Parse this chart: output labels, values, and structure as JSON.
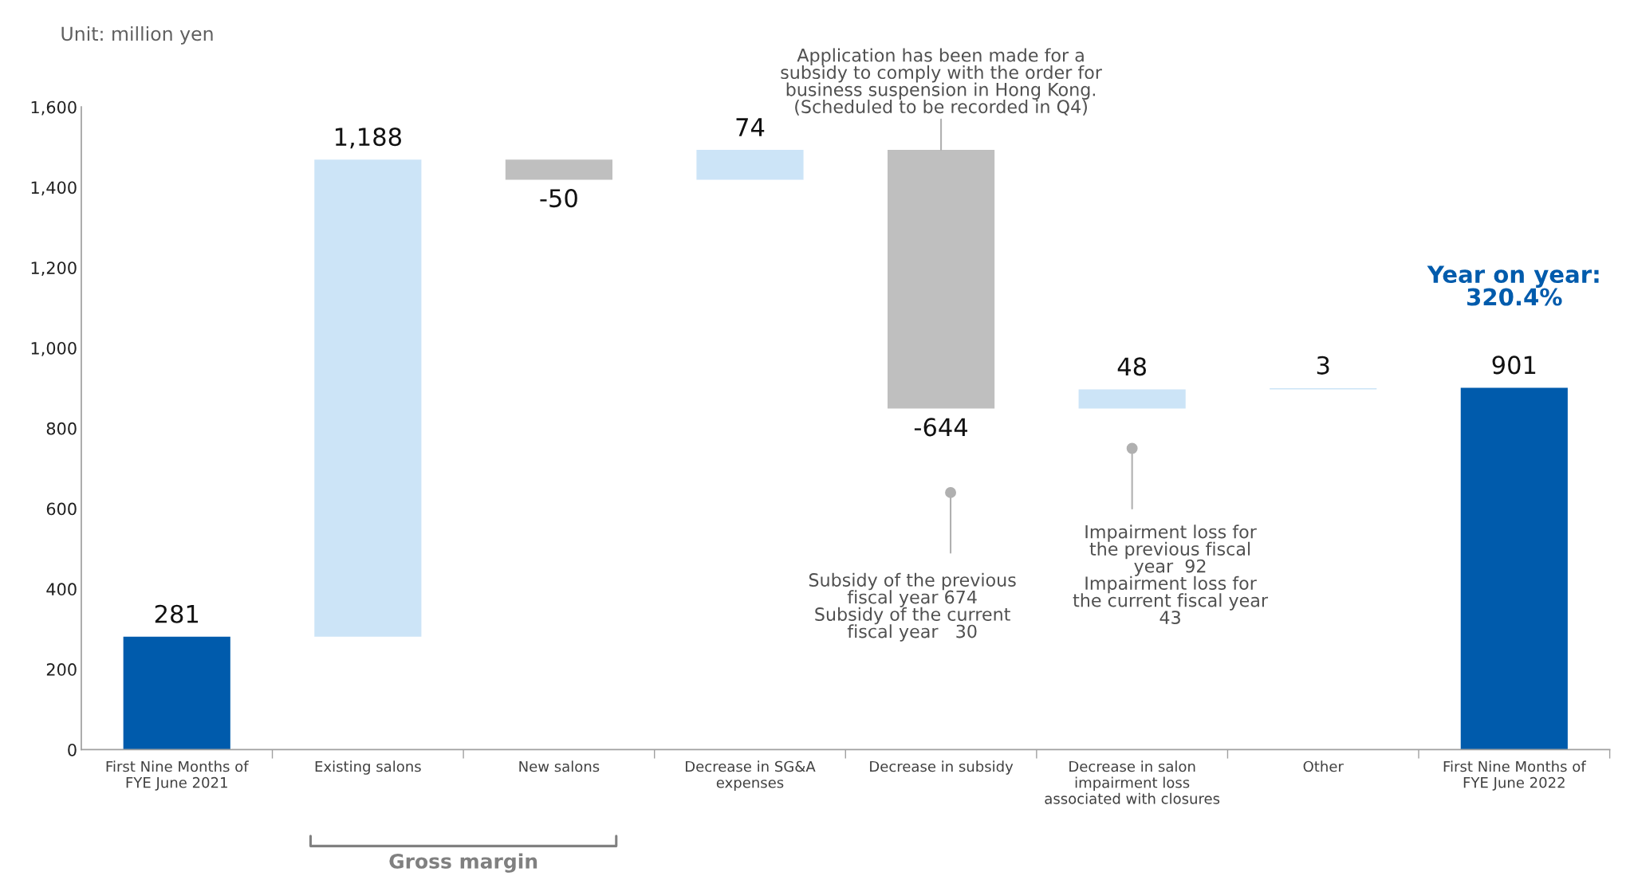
{
  "chart_data": {
    "type": "bar",
    "categories": [
      "First Nine Months of\nFYE June 2021",
      "Existing salons",
      "New salons",
      "Decrease in SG&A\nexpenses",
      "Decrease in subsidy",
      "Decrease in salon\nimpairment loss\nassociated with closures",
      "Other",
      "First Nine Months of\nFYE June 2022"
    ],
    "values": [
      281,
      1188,
      -50,
      74,
      -644,
      48,
      3,
      901
    ],
    "base": [
      0,
      281,
      1469,
      1419,
      1493,
      849,
      897,
      0
    ],
    "colors": [
      "#005bac",
      "#cce4f7",
      "#bfbfbf",
      "#cce4f7",
      "#bfbfbf",
      "#cce4f7",
      "#cce4f7",
      "#005bac"
    ],
    "value_labels": [
      "281",
      "1,188",
      "-50",
      "74",
      "-644",
      "48",
      "3",
      "901"
    ],
    "ylim": [
      0,
      1600
    ],
    "yticks": [
      0,
      {
        "value": 200,
        "label": "200"
      },
      {
        "value": 400,
        "label": "400"
      },
      {
        "value": 600,
        "label": "600"
      },
      {
        "value": 800,
        "label": "800"
      },
      {
        "value": 1000,
        "label": "1,000"
      },
      {
        "value": 1200,
        "label": "1,200"
      },
      {
        "value": 1400,
        "label": "1,400"
      },
      {
        "value": 1600,
        "label": "1,600"
      }
    ],
    "grid": false,
    "legend": false,
    "annotations": [
      "Unit: million yen",
      {
        "text": "Application has been made for a\nsubsidy to comply with the order for\nbusiness suspension in Hong Kong.\n(Scheduled to be recorded in Q4)",
        "x": "Decrease in subsidy",
        "y": 1493
      },
      "Subsidy of the previous\nfiscal year 674\nSubsidy of the current\nfiscal year   30",
      "Impairment loss for\nthe previous fiscal\nyear  92\nImpairment loss for\nthe current fiscal year\n43",
      "Year on year:\n320.4%",
      "Gross margin"
    ]
  }
}
